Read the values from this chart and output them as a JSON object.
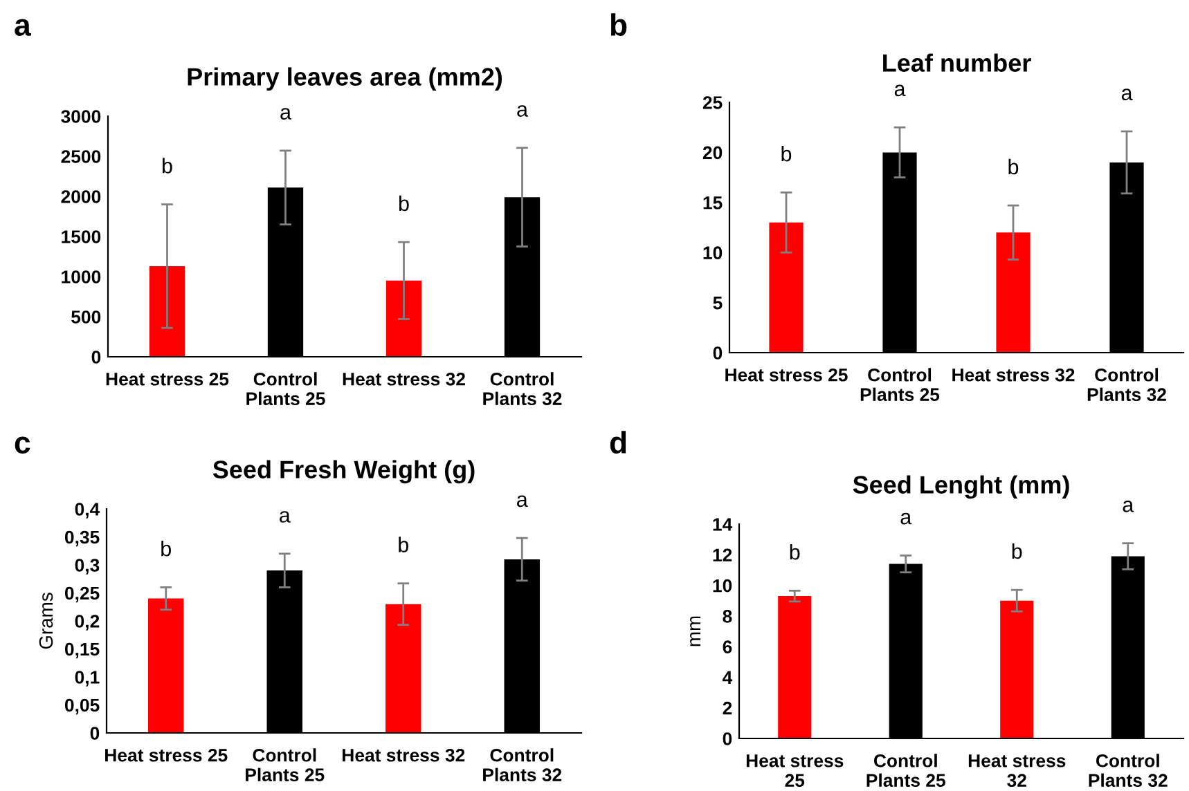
{
  "chart_data": [
    {
      "type": "bar",
      "title": "Primary leaves area (mm2)",
      "categories": [
        "Heat stress 25",
        "Control\nPlants 25",
        "Heat stress 32",
        "Control\nPlants 32"
      ],
      "values": [
        1130,
        2110,
        950,
        1990
      ],
      "colors": [
        "#ff0000",
        "#000000",
        "#ff0000",
        "#000000"
      ],
      "errors": [
        770,
        460,
        480,
        615
      ],
      "ylim": [
        0,
        3000
      ],
      "yticks": [
        0,
        500,
        1000,
        1500,
        2000,
        2500,
        3000
      ],
      "grid": false,
      "annotations": [
        "a",
        "b",
        "a",
        "b",
        "a"
      ]
    },
    {
      "type": "bar",
      "title": "Leaf number",
      "categories": [
        "Heat stress 25",
        "Control\nPlants 25",
        "Heat stress 32",
        "Control\nPlants 32"
      ],
      "values": [
        13,
        20,
        12,
        19
      ],
      "colors": [
        "#ff0000",
        "#000000",
        "#ff0000",
        "#000000"
      ],
      "errors": [
        3,
        2.5,
        2.7,
        3.1
      ],
      "ylim": [
        0,
        25
      ],
      "yticks": [
        0,
        5,
        10,
        15,
        20,
        25
      ],
      "grid": false,
      "annotations": [
        "b",
        "b",
        "a",
        "b",
        "a"
      ]
    },
    {
      "type": "bar",
      "title": "Seed Fresh Weight (g)",
      "ylabel": "Grams",
      "categories": [
        "Heat stress 25",
        "Control\nPlants 25",
        "Heat stress 32",
        "Control\nPlants 32"
      ],
      "values": [
        0.24,
        0.29,
        0.23,
        0.31
      ],
      "colors": [
        "#ff0000",
        "#000000",
        "#ff0000",
        "#000000"
      ],
      "errors": [
        0.02,
        0.03,
        0.037,
        0.038
      ],
      "ylim": [
        0,
        0.4
      ],
      "yticks": [
        0,
        {
          "value": 0.05,
          "label": "0,05"
        },
        {
          "value": 0.1,
          "label": "0,1"
        },
        {
          "value": 0.15,
          "label": "0,15"
        },
        {
          "value": 0.2,
          "label": "0,2"
        },
        {
          "value": 0.25,
          "label": "0,25"
        },
        {
          "value": 0.3,
          "label": "0,3"
        },
        {
          "value": 0.35,
          "label": "0,35"
        },
        {
          "value": 0.4,
          "label": "0,4"
        }
      ],
      "grid": false,
      "annotations": [
        "c",
        "b",
        "a",
        "b",
        "a"
      ]
    },
    {
      "type": "bar",
      "title": "Seed Lenght (mm)",
      "ylabel": "mm",
      "categories": [
        "Heat stress\n25",
        "Control\nPlants 25",
        "Heat stress\n32",
        "Control\nPlants 32"
      ],
      "values": [
        9.3,
        11.4,
        9.0,
        11.9
      ],
      "colors": [
        "#ff0000",
        "#000000",
        "#ff0000",
        "#000000"
      ],
      "errors": [
        0.35,
        0.55,
        0.7,
        0.85
      ],
      "ylim": [
        0,
        14
      ],
      "yticks": [
        0,
        2,
        4,
        6,
        8,
        10,
        12,
        14
      ],
      "grid": false,
      "annotations": [
        "d",
        "b",
        "a",
        "b",
        "a"
      ]
    }
  ]
}
